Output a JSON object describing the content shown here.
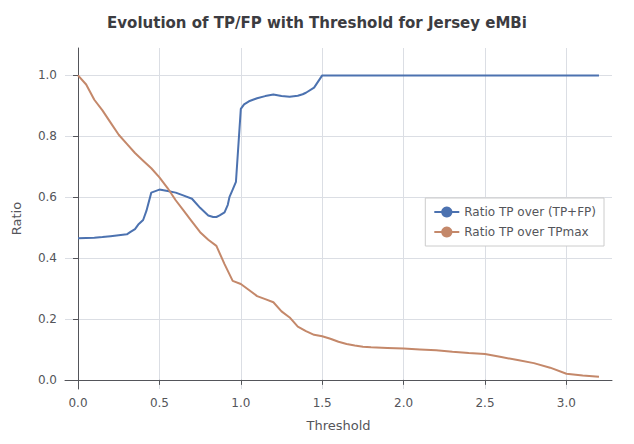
{
  "chart_data": {
    "type": "line",
    "title": "Evolution of TP/FP with Threshold for Jersey eMBi",
    "xlabel": "Threshold",
    "ylabel": "Ratio",
    "xlim": [
      -0.08,
      3.28
    ],
    "ylim": [
      -0.03,
      1.09
    ],
    "xticks": [
      {
        "value": 0.0,
        "label": "0.0"
      },
      0.5,
      {
        "value": 1.0,
        "label": "1.0"
      },
      1.5,
      {
        "value": 2.0,
        "label": "2.0"
      },
      2.5,
      {
        "value": 3.0,
        "label": "3.0"
      }
    ],
    "yticks": [
      {
        "value": 0.0,
        "label": "0.0"
      },
      0.2,
      0.4,
      0.6,
      0.8,
      {
        "value": 1.0,
        "label": "1.0"
      }
    ],
    "grid": true,
    "legend": "center right",
    "series": [
      {
        "name": "Ratio TP over (TP+FP)",
        "color": "#4c72b0",
        "x": [
          0.0,
          0.05,
          0.1,
          0.15,
          0.2,
          0.25,
          0.3,
          0.32,
          0.35,
          0.37,
          0.4,
          0.42,
          0.45,
          0.5,
          0.55,
          0.6,
          0.65,
          0.7,
          0.75,
          0.8,
          0.83,
          0.85,
          0.87,
          0.9,
          0.92,
          0.93,
          0.95,
          0.97,
          1.0,
          1.02,
          1.05,
          1.1,
          1.15,
          1.2,
          1.25,
          1.3,
          1.35,
          1.38,
          1.4,
          1.45,
          1.5,
          1.6,
          1.7,
          1.8,
          1.9,
          2.0,
          2.1,
          2.2,
          2.5,
          2.7,
          3.0,
          3.1,
          3.2
        ],
        "values": [
          0.465,
          0.466,
          0.467,
          0.469,
          0.472,
          0.475,
          0.478,
          0.485,
          0.495,
          0.51,
          0.525,
          0.555,
          0.615,
          0.625,
          0.62,
          0.615,
          0.605,
          0.595,
          0.565,
          0.54,
          0.535,
          0.535,
          0.54,
          0.55,
          0.575,
          0.6,
          0.625,
          0.65,
          0.89,
          0.905,
          0.915,
          0.925,
          0.932,
          0.937,
          0.932,
          0.93,
          0.933,
          0.938,
          0.943,
          0.96,
          1.0,
          1.0,
          1.0,
          1.0,
          1.0,
          1.0,
          1.0,
          1.0,
          1.0,
          1.0,
          1.0,
          1.0,
          1.0
        ]
      },
      {
        "name": "Ratio TP over TPmax",
        "color": "#c4886a",
        "x": [
          0.0,
          0.05,
          0.1,
          0.15,
          0.2,
          0.25,
          0.3,
          0.35,
          0.4,
          0.45,
          0.5,
          0.55,
          0.6,
          0.65,
          0.7,
          0.75,
          0.8,
          0.85,
          0.9,
          0.95,
          1.0,
          1.05,
          1.1,
          1.15,
          1.2,
          1.25,
          1.3,
          1.35,
          1.4,
          1.45,
          1.5,
          1.55,
          1.6,
          1.65,
          1.7,
          1.75,
          1.8,
          1.9,
          2.0,
          2.1,
          2.2,
          2.3,
          2.4,
          2.5,
          2.6,
          2.7,
          2.8,
          2.9,
          3.0,
          3.1,
          3.2
        ],
        "values": [
          1.0,
          0.97,
          0.92,
          0.885,
          0.845,
          0.805,
          0.775,
          0.745,
          0.72,
          0.695,
          0.665,
          0.63,
          0.59,
          0.555,
          0.52,
          0.485,
          0.46,
          0.44,
          0.38,
          0.325,
          0.315,
          0.295,
          0.275,
          0.265,
          0.255,
          0.225,
          0.205,
          0.175,
          0.16,
          0.148,
          0.143,
          0.135,
          0.125,
          0.118,
          0.113,
          0.109,
          0.107,
          0.105,
          0.103,
          0.1,
          0.097,
          0.092,
          0.088,
          0.085,
          0.075,
          0.065,
          0.055,
          0.04,
          0.02,
          0.014,
          0.01
        ]
      }
    ]
  }
}
